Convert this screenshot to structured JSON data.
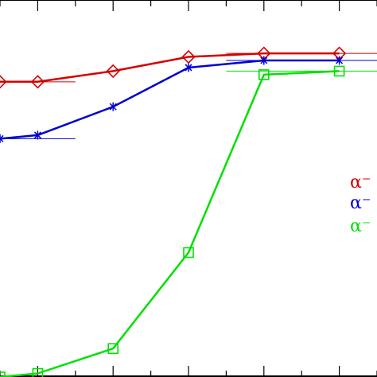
{
  "chart_data": {
    "type": "line",
    "title": "",
    "xlabel": "",
    "ylabel": "",
    "x": [
      0.5,
      1,
      2,
      3,
      4,
      5
    ],
    "xlim": [
      0.5,
      5.5
    ],
    "ylim": [
      0,
      1.06
    ],
    "x_ticks": [
      1,
      2,
      3,
      4,
      5
    ],
    "grid": false,
    "legend_position": "right",
    "series": [
      {
        "name": "α⁻",
        "color": "#d40000",
        "marker": "diamond",
        "values": [
          0.83,
          0.83,
          0.86,
          0.9,
          0.91,
          0.91
        ],
        "reference_lines": [
          {
            "x": [
              0.5,
              1.5
            ],
            "y": 0.83
          },
          {
            "x": [
              3.5,
              5.5
            ],
            "y": 0.91
          }
        ]
      },
      {
        "name": "α⁻",
        "color": "#0000d0",
        "marker": "star",
        "values": [
          0.67,
          0.68,
          0.76,
          0.87,
          0.89,
          0.89
        ],
        "reference_lines": [
          {
            "x": [
              0.5,
              1.5
            ],
            "y": 0.67
          },
          {
            "x": [
              3.5,
              5.5
            ],
            "y": 0.89
          }
        ]
      },
      {
        "name": "α⁻",
        "color": "#00e000",
        "marker": "square",
        "values": [
          0.0,
          0.01,
          0.08,
          0.35,
          0.85,
          0.86
        ],
        "reference_lines": [
          {
            "x": [
              3.5,
              5.5
            ],
            "y": 0.86
          }
        ]
      }
    ]
  }
}
